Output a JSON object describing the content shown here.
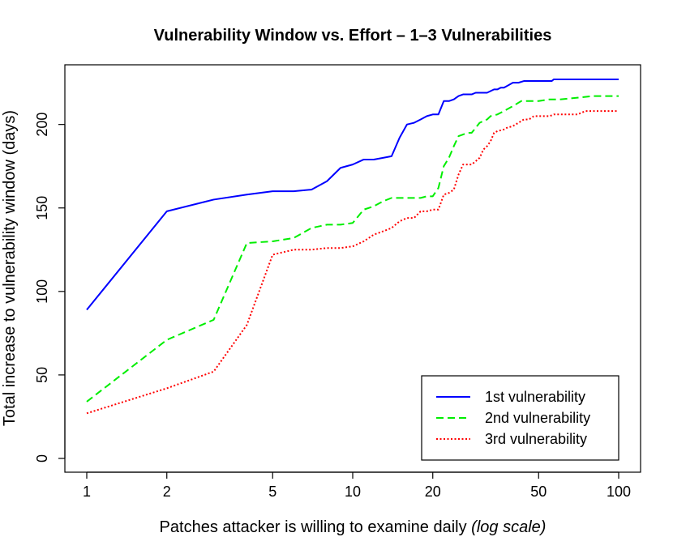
{
  "chart_data": {
    "type": "line",
    "title": "Vulnerability Window vs. Effort – 1–3 Vulnerabilities",
    "xlabel": "Patches attacker is willing to examine daily",
    "xlabel_note": "(log scale)",
    "ylabel": "Total increase to vulnerability window (days)",
    "x_scale": "log",
    "xlim": [
      1,
      100
    ],
    "ylim": [
      0,
      227
    ],
    "x_ticks": [
      1,
      2,
      5,
      10,
      20,
      50,
      100
    ],
    "x_tick_labels": [
      "1",
      "2",
      "5",
      "10",
      "20",
      "50",
      "100"
    ],
    "y_ticks": [
      0,
      50,
      100,
      150,
      200
    ],
    "y_tick_labels": [
      "0",
      "50",
      "100",
      "150",
      "200"
    ],
    "grid": false,
    "legend_position": "bottom-right",
    "series": [
      {
        "name": "1st vulnerability",
        "color": "#0000ff",
        "dash": "solid",
        "points": [
          [
            1,
            89
          ],
          [
            2,
            148
          ],
          [
            3,
            155
          ],
          [
            4,
            158
          ],
          [
            5,
            160
          ],
          [
            6,
            160
          ],
          [
            7,
            161
          ],
          [
            8,
            166
          ],
          [
            9,
            174
          ],
          [
            10,
            176
          ],
          [
            11,
            179
          ],
          [
            12,
            179
          ],
          [
            13,
            180
          ],
          [
            14,
            181
          ],
          [
            15,
            192
          ],
          [
            16,
            200
          ],
          [
            17,
            201
          ],
          [
            18,
            203
          ],
          [
            19,
            205
          ],
          [
            20,
            206
          ],
          [
            21,
            206
          ],
          [
            22,
            214
          ],
          [
            23,
            214
          ],
          [
            24,
            215
          ],
          [
            25,
            217
          ],
          [
            26,
            218
          ],
          [
            28,
            218
          ],
          [
            29,
            219
          ],
          [
            32,
            219
          ],
          [
            34,
            221
          ],
          [
            35,
            221
          ],
          [
            36,
            222
          ],
          [
            37,
            222
          ],
          [
            38,
            223
          ],
          [
            40,
            225
          ],
          [
            42,
            225
          ],
          [
            44,
            226
          ],
          [
            50,
            226
          ],
          [
            56,
            226
          ],
          [
            57,
            227
          ],
          [
            70,
            227
          ],
          [
            100,
            227
          ]
        ]
      },
      {
        "name": "2nd vulnerability",
        "color": "#00ee00",
        "dash": "dashed",
        "points": [
          [
            1,
            34
          ],
          [
            2,
            71
          ],
          [
            3,
            83
          ],
          [
            4,
            129
          ],
          [
            5,
            130
          ],
          [
            6,
            132
          ],
          [
            7,
            138
          ],
          [
            8,
            140
          ],
          [
            9,
            140
          ],
          [
            10,
            141
          ],
          [
            11,
            149
          ],
          [
            12,
            151
          ],
          [
            13,
            154
          ],
          [
            14,
            156
          ],
          [
            16,
            156
          ],
          [
            18,
            156
          ],
          [
            19,
            157
          ],
          [
            20,
            157
          ],
          [
            21,
            162
          ],
          [
            22,
            175
          ],
          [
            23,
            180
          ],
          [
            24,
            187
          ],
          [
            25,
            193
          ],
          [
            26,
            194
          ],
          [
            27,
            195
          ],
          [
            28,
            195
          ],
          [
            29,
            198
          ],
          [
            30,
            201
          ],
          [
            32,
            203
          ],
          [
            33,
            205
          ],
          [
            35,
            206
          ],
          [
            37,
            208
          ],
          [
            39,
            210
          ],
          [
            41,
            212
          ],
          [
            43,
            214
          ],
          [
            50,
            214
          ],
          [
            55,
            215
          ],
          [
            60,
            215
          ],
          [
            70,
            216
          ],
          [
            80,
            217
          ],
          [
            100,
            217
          ]
        ]
      },
      {
        "name": "3rd vulnerability",
        "color": "#ff0000",
        "dash": "dotted",
        "points": [
          [
            1,
            27
          ],
          [
            2,
            42
          ],
          [
            3,
            52
          ],
          [
            4,
            80
          ],
          [
            5,
            122
          ],
          [
            6,
            125
          ],
          [
            7,
            125
          ],
          [
            8,
            126
          ],
          [
            9,
            126
          ],
          [
            10,
            127
          ],
          [
            11,
            130
          ],
          [
            12,
            134
          ],
          [
            13,
            136
          ],
          [
            14,
            138
          ],
          [
            15,
            142
          ],
          [
            16,
            144
          ],
          [
            17,
            144
          ],
          [
            18,
            148
          ],
          [
            19,
            148
          ],
          [
            20,
            149
          ],
          [
            21,
            149
          ],
          [
            22,
            158
          ],
          [
            23,
            159
          ],
          [
            24,
            161
          ],
          [
            25,
            170
          ],
          [
            26,
            176
          ],
          [
            28,
            176
          ],
          [
            29,
            178
          ],
          [
            30,
            180
          ],
          [
            31,
            185
          ],
          [
            32,
            187
          ],
          [
            33,
            190
          ],
          [
            34,
            195
          ],
          [
            35,
            196
          ],
          [
            37,
            197
          ],
          [
            38,
            198
          ],
          [
            40,
            199
          ],
          [
            42,
            201
          ],
          [
            44,
            203
          ],
          [
            46,
            203
          ],
          [
            48,
            205
          ],
          [
            55,
            205
          ],
          [
            57,
            206
          ],
          [
            70,
            206
          ],
          [
            75,
            208
          ],
          [
            100,
            208
          ]
        ]
      }
    ]
  }
}
